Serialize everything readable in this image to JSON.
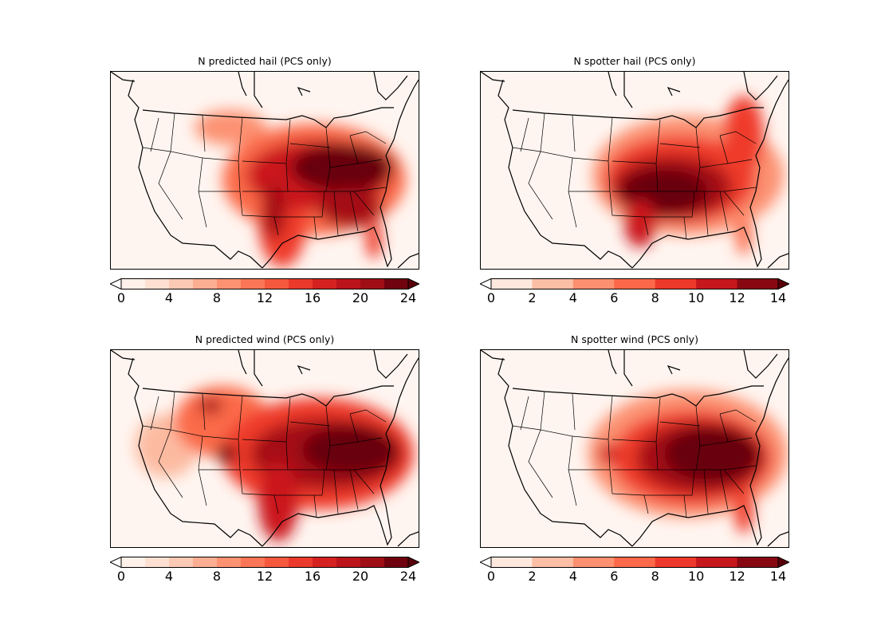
{
  "colors": {
    "reds12": [
      "#fff0e9",
      "#fee0d2",
      "#fcc9b4",
      "#fcae92",
      "#fc9272",
      "#fb7656",
      "#f6583e",
      "#eb3a2c",
      "#d52221",
      "#bb141a",
      "#9f0e15",
      "#6f020e"
    ],
    "reds7": [
      "#fee8de",
      "#fcbea5",
      "#fc9070",
      "#fb694a",
      "#ed392b",
      "#c5171c",
      "#880812"
    ],
    "over": "#5a000a",
    "under": "#ffffff"
  },
  "chart_data": [
    {
      "type": "heatmap",
      "title": "N predicted hail (PCS only)",
      "levels": [
        0,
        2,
        4,
        6,
        8,
        10,
        12,
        14,
        16,
        18,
        20,
        22,
        24
      ],
      "ticks": [
        "0",
        "4",
        "8",
        "12",
        "16",
        "20",
        "24"
      ],
      "extend": "both"
    },
    {
      "type": "heatmap",
      "title": "N spotter hail (PCS only)",
      "levels": [
        0,
        2,
        4,
        6,
        8,
        10,
        12,
        14
      ],
      "ticks": [
        "0",
        "2",
        "4",
        "6",
        "8",
        "10",
        "12",
        "14"
      ],
      "extend": "both"
    },
    {
      "type": "heatmap",
      "title": "N predicted wind (PCS only)",
      "levels": [
        0,
        2,
        4,
        6,
        8,
        10,
        12,
        14,
        16,
        18,
        20,
        22,
        24
      ],
      "ticks": [
        "0",
        "4",
        "8",
        "12",
        "16",
        "20",
        "24"
      ],
      "extend": "both"
    },
    {
      "type": "heatmap",
      "title": "N spotter wind (PCS only)",
      "levels": [
        0,
        2,
        4,
        6,
        8,
        10,
        12,
        14
      ],
      "ticks": [
        "0",
        "2",
        "4",
        "6",
        "8",
        "10",
        "12",
        "14"
      ],
      "extend": "both"
    }
  ]
}
